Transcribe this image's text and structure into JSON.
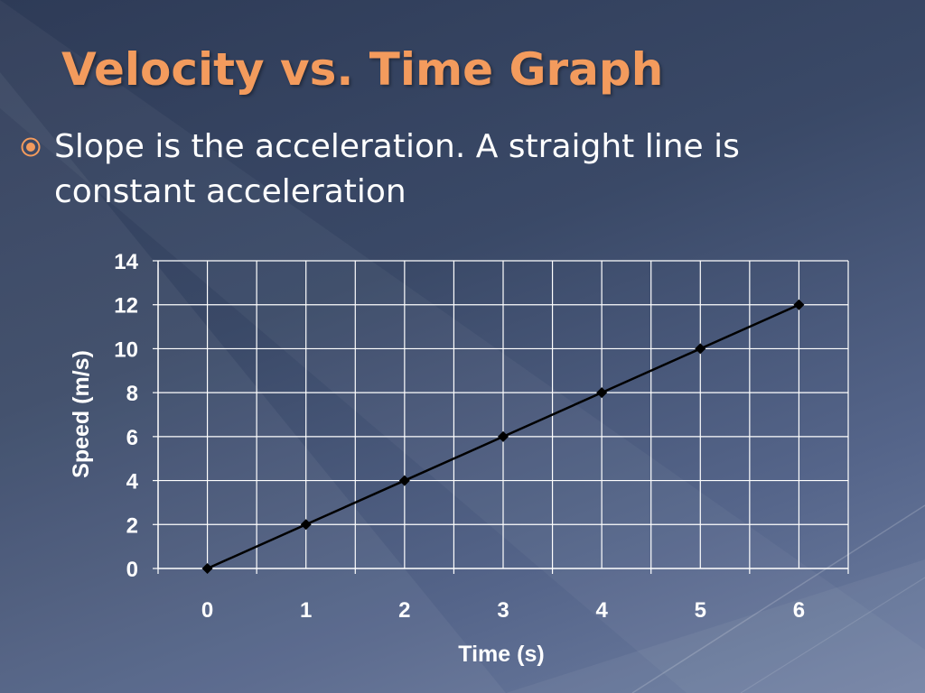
{
  "slide": {
    "title": "Velocity vs. Time Graph",
    "bullet": "Slope is the acceleration. A straight line is constant acceleration",
    "title_color": "#f39b5d",
    "text_color": "#ffffff",
    "bullet_icon": "target-ring-icon"
  },
  "chart_data": {
    "type": "line",
    "x": [
      0,
      1,
      2,
      3,
      4,
      5,
      6
    ],
    "series": [
      {
        "values": [
          0,
          2,
          4,
          6,
          8,
          10,
          12
        ],
        "color": "#000000",
        "marker": "diamond"
      }
    ],
    "xlabel": "Time (s)",
    "ylabel": "Speed (m/s)",
    "xticks": [
      "0",
      "1",
      "2",
      "3",
      "4",
      "5",
      "6"
    ],
    "yticks": [
      "0",
      "2",
      "4",
      "6",
      "8",
      "10",
      "12",
      "14"
    ],
    "ylim": [
      0,
      14
    ],
    "grid": true,
    "grid_color": "#ffffff",
    "legend": "none"
  }
}
